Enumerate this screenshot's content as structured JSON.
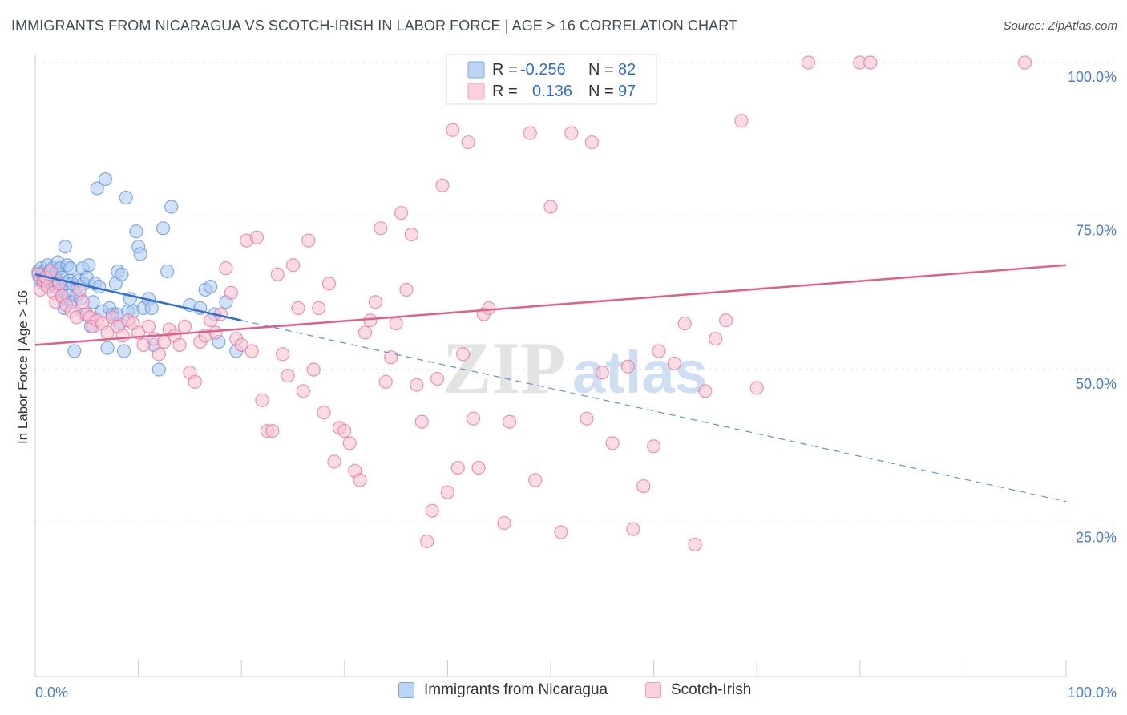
{
  "header": {
    "title": "IMMIGRANTS FROM NICARAGUA VS SCOTCH-IRISH IN LABOR FORCE | AGE > 16 CORRELATION CHART",
    "source": "Source: ZipAtlas.com"
  },
  "watermark": {
    "zip": "ZIP",
    "atlas": "atlas"
  },
  "stats_legend": {
    "rows": [
      {
        "r_label": "R =",
        "r_value": "-0.256",
        "n_label": "N =",
        "n_value": "82",
        "color": "#9dc3f0"
      },
      {
        "r_label": "R =",
        "r_value": "0.136",
        "n_label": "N =",
        "n_value": "97",
        "color": "#f7b8ca"
      }
    ]
  },
  "chart_data": {
    "type": "scatter",
    "title": "IMMIGRANTS FROM NICARAGUA VS SCOTCH-IRISH IN LABOR FORCE | AGE > 16 CORRELATION CHART",
    "xlabel": "",
    "ylabel": "In Labor Force | Age > 16",
    "xlim": [
      0,
      100
    ],
    "ylim": [
      0,
      100
    ],
    "x_tick_labels": [
      "0.0%",
      "100.0%"
    ],
    "y_ticks": [
      25,
      50,
      75,
      100
    ],
    "y_tick_labels": [
      "25.0%",
      "50.0%",
      "75.0%",
      "100.0%"
    ],
    "grid": true,
    "legend_position": "bottom",
    "series": [
      {
        "name": "Immigrants from Nicaragua",
        "color": "#5b93de",
        "fill": "#a9c9f2",
        "trend": {
          "x0": 0,
          "y0": 65.5,
          "x1": 20,
          "y1": 58.0,
          "dashed_to_x": 100,
          "dashed_to_y": 28.5
        },
        "points": [
          [
            0.3,
            66.0
          ],
          [
            0.4,
            65.0
          ],
          [
            0.5,
            64.5
          ],
          [
            0.6,
            66.5
          ],
          [
            0.7,
            65.5
          ],
          [
            0.8,
            64.0
          ],
          [
            0.9,
            66.0
          ],
          [
            1.0,
            65.0
          ],
          [
            1.1,
            64.5
          ],
          [
            1.2,
            67.0
          ],
          [
            1.3,
            65.5
          ],
          [
            1.4,
            66.0
          ],
          [
            1.5,
            64.0
          ],
          [
            1.6,
            65.0
          ],
          [
            1.7,
            66.5
          ],
          [
            1.8,
            64.5
          ],
          [
            1.9,
            65.0
          ],
          [
            2.0,
            63.5
          ],
          [
            2.1,
            66.0
          ],
          [
            2.2,
            67.5
          ],
          [
            2.3,
            64.0
          ],
          [
            2.4,
            66.5
          ],
          [
            2.5,
            63.0
          ],
          [
            2.6,
            65.0
          ],
          [
            2.7,
            61.5
          ],
          [
            2.8,
            60.0
          ],
          [
            2.9,
            70.0
          ],
          [
            3.0,
            64.0
          ],
          [
            3.1,
            67.0
          ],
          [
            3.2,
            62.0
          ],
          [
            3.3,
            64.5
          ],
          [
            3.4,
            66.5
          ],
          [
            3.5,
            61.0
          ],
          [
            3.6,
            64.0
          ],
          [
            3.8,
            53.0
          ],
          [
            4.0,
            62.0
          ],
          [
            4.2,
            64.5
          ],
          [
            4.4,
            61.5
          ],
          [
            4.6,
            66.5
          ],
          [
            4.7,
            64.0
          ],
          [
            4.8,
            59.0
          ],
          [
            5.0,
            65.0
          ],
          [
            5.2,
            67.0
          ],
          [
            5.4,
            57.0
          ],
          [
            5.6,
            61.0
          ],
          [
            5.8,
            64.0
          ],
          [
            6.0,
            79.5
          ],
          [
            6.2,
            63.5
          ],
          [
            6.5,
            59.5
          ],
          [
            6.8,
            81.0
          ],
          [
            7.0,
            53.5
          ],
          [
            7.2,
            60.0
          ],
          [
            7.5,
            59.0
          ],
          [
            7.8,
            64.0
          ],
          [
            7.9,
            59.0
          ],
          [
            8.0,
            66.0
          ],
          [
            8.2,
            57.5
          ],
          [
            8.4,
            65.5
          ],
          [
            8.6,
            53.0
          ],
          [
            8.8,
            78.0
          ],
          [
            9.0,
            59.5
          ],
          [
            9.2,
            61.5
          ],
          [
            9.5,
            59.5
          ],
          [
            10.0,
            70.0
          ],
          [
            10.2,
            68.8
          ],
          [
            10.5,
            60.0
          ],
          [
            11.0,
            61.5
          ],
          [
            11.3,
            60.0
          ],
          [
            11.5,
            54.0
          ],
          [
            12.0,
            50.0
          ],
          [
            12.4,
            73.0
          ],
          [
            12.8,
            66.0
          ],
          [
            13.2,
            76.5
          ],
          [
            15.0,
            60.5
          ],
          [
            16.0,
            60.0
          ],
          [
            16.5,
            63.0
          ],
          [
            17.0,
            63.5
          ],
          [
            17.4,
            59.0
          ],
          [
            17.8,
            54.5
          ],
          [
            18.5,
            61.0
          ],
          [
            19.5,
            53.0
          ],
          [
            9.8,
            72.5
          ]
        ]
      },
      {
        "name": "Scotch-Irish",
        "color": "#e8729a",
        "fill": "#f7c0d0",
        "trend": {
          "x0": 0,
          "y0": 54.0,
          "x1": 100,
          "y1": 67.0
        },
        "points": [
          [
            0.3,
            65.5
          ],
          [
            0.5,
            63.0
          ],
          [
            0.8,
            64.5
          ],
          [
            1.0,
            65.0
          ],
          [
            1.2,
            63.5
          ],
          [
            1.5,
            66.0
          ],
          [
            1.8,
            62.5
          ],
          [
            2.0,
            61.0
          ],
          [
            2.3,
            64.0
          ],
          [
            2.6,
            62.0
          ],
          [
            3.0,
            60.5
          ],
          [
            3.5,
            59.5
          ],
          [
            4.0,
            58.5
          ],
          [
            4.3,
            63.0
          ],
          [
            4.6,
            61.0
          ],
          [
            5.0,
            59.0
          ],
          [
            5.3,
            58.5
          ],
          [
            5.6,
            57.0
          ],
          [
            6.0,
            58.0
          ],
          [
            6.5,
            57.5
          ],
          [
            7.0,
            56.0
          ],
          [
            7.5,
            58.5
          ],
          [
            8.0,
            57.0
          ],
          [
            8.5,
            55.5
          ],
          [
            9.0,
            58.0
          ],
          [
            9.5,
            57.5
          ],
          [
            10.0,
            56.0
          ],
          [
            10.5,
            54.0
          ],
          [
            11.0,
            57.0
          ],
          [
            11.5,
            55.0
          ],
          [
            12.0,
            52.5
          ],
          [
            12.5,
            54.5
          ],
          [
            13.0,
            56.5
          ],
          [
            13.5,
            55.5
          ],
          [
            14.0,
            54.0
          ],
          [
            14.5,
            57.0
          ],
          [
            15.0,
            49.5
          ],
          [
            15.5,
            48.0
          ],
          [
            16.0,
            54.5
          ],
          [
            16.5,
            55.5
          ],
          [
            17.0,
            58.0
          ],
          [
            17.5,
            56.0
          ],
          [
            18.0,
            59.0
          ],
          [
            18.5,
            66.5
          ],
          [
            19.0,
            62.5
          ],
          [
            19.5,
            55.0
          ],
          [
            20.0,
            54.0
          ],
          [
            20.5,
            71.0
          ],
          [
            21.0,
            53.0
          ],
          [
            21.5,
            71.5
          ],
          [
            22.0,
            45.0
          ],
          [
            22.5,
            40.0
          ],
          [
            23.0,
            40.0
          ],
          [
            23.5,
            65.5
          ],
          [
            24.0,
            52.5
          ],
          [
            24.5,
            49.0
          ],
          [
            25.0,
            67.0
          ],
          [
            25.5,
            60.0
          ],
          [
            26.0,
            46.5
          ],
          [
            26.5,
            71.0
          ],
          [
            27.0,
            50.0
          ],
          [
            27.5,
            60.0
          ],
          [
            28.0,
            43.0
          ],
          [
            28.5,
            64.0
          ],
          [
            29.0,
            35.0
          ],
          [
            29.5,
            40.5
          ],
          [
            30.0,
            40.0
          ],
          [
            30.5,
            38.0
          ],
          [
            31.0,
            33.5
          ],
          [
            31.5,
            32.0
          ],
          [
            32.0,
            56.0
          ],
          [
            32.5,
            58.0
          ],
          [
            33.0,
            61.0
          ],
          [
            33.5,
            73.0
          ],
          [
            34.0,
            48.0
          ],
          [
            34.5,
            52.0
          ],
          [
            35.0,
            57.5
          ],
          [
            35.5,
            75.5
          ],
          [
            36.0,
            63.0
          ],
          [
            36.5,
            72.0
          ],
          [
            37.0,
            47.5
          ],
          [
            37.5,
            41.5
          ],
          [
            38.0,
            22.0
          ],
          [
            38.5,
            27.0
          ],
          [
            39.0,
            48.5
          ],
          [
            39.5,
            80.0
          ],
          [
            40.0,
            30.0
          ],
          [
            40.5,
            89.0
          ],
          [
            41.0,
            34.0
          ],
          [
            41.5,
            52.5
          ],
          [
            42.0,
            87.0
          ],
          [
            42.5,
            42.0
          ],
          [
            43.0,
            34.0
          ],
          [
            43.5,
            59.0
          ],
          [
            44.0,
            60.0
          ],
          [
            44.5,
            100.0
          ],
          [
            45.5,
            25.0
          ],
          [
            46.0,
            41.5
          ],
          [
            47.0,
            100.0
          ],
          [
            48.0,
            88.5
          ],
          [
            48.5,
            32.0
          ],
          [
            50.0,
            76.5
          ],
          [
            51.0,
            23.5
          ],
          [
            52.0,
            88.5
          ],
          [
            53.5,
            42.0
          ],
          [
            54.0,
            87.0
          ],
          [
            55.0,
            49.5
          ],
          [
            56.0,
            38.0
          ],
          [
            57.5,
            50.5
          ],
          [
            58.0,
            24.0
          ],
          [
            59.0,
            31.0
          ],
          [
            60.0,
            37.5
          ],
          [
            60.5,
            53.0
          ],
          [
            62.0,
            51.0
          ],
          [
            63.0,
            57.5
          ],
          [
            64.0,
            21.5
          ],
          [
            65.0,
            46.5
          ],
          [
            66.0,
            55.0
          ],
          [
            67.0,
            58.0
          ],
          [
            68.5,
            90.5
          ],
          [
            70.0,
            47.0
          ],
          [
            75.0,
            100.0
          ],
          [
            80.0,
            100.0
          ],
          [
            81.0,
            100.0
          ],
          [
            96.0,
            100.0
          ]
        ]
      }
    ]
  },
  "bottom_legend": {
    "items": [
      {
        "label": "Immigrants from Nicaragua"
      },
      {
        "label": "Scotch-Irish"
      }
    ]
  }
}
